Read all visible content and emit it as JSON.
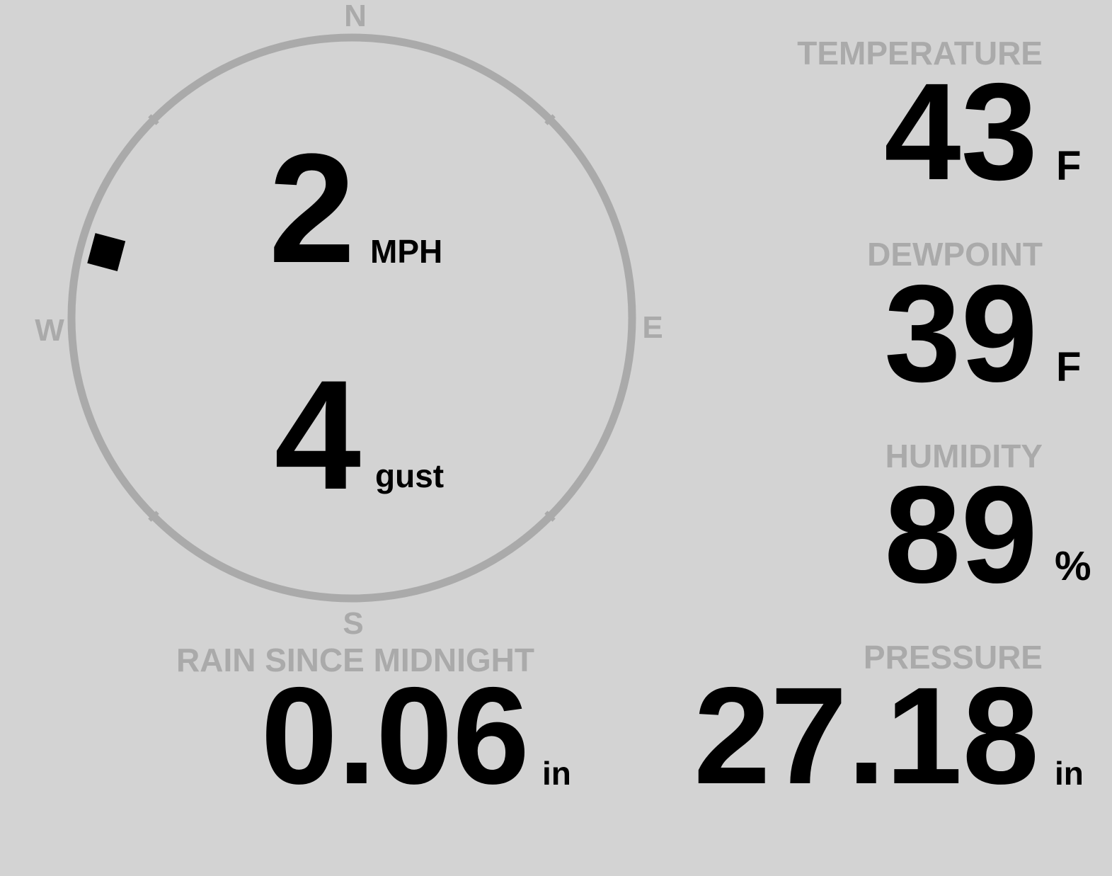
{
  "compass": {
    "north": "N",
    "south": "S",
    "east": "E",
    "west": "W",
    "wind_direction_deg": 285,
    "ring_color": "#aaaaaa"
  },
  "wind": {
    "speed": "2",
    "speed_unit": "MPH",
    "gust": "4",
    "gust_unit": "gust"
  },
  "temperature": {
    "label": "TEMPERATURE",
    "value": "43",
    "unit": "F"
  },
  "dewpoint": {
    "label": "DEWPOINT",
    "value": "39",
    "unit": "F"
  },
  "humidity": {
    "label": "HUMIDITY",
    "value": "89",
    "unit": "%"
  },
  "rain": {
    "label": "RAIN SINCE MIDNIGHT",
    "value": "0.06",
    "unit": "in"
  },
  "pressure": {
    "label": "PRESSURE",
    "value": "27.18",
    "unit": "in"
  },
  "colors": {
    "background": "#d3d3d3",
    "label": "#aaaaaa",
    "value": "#000000"
  }
}
